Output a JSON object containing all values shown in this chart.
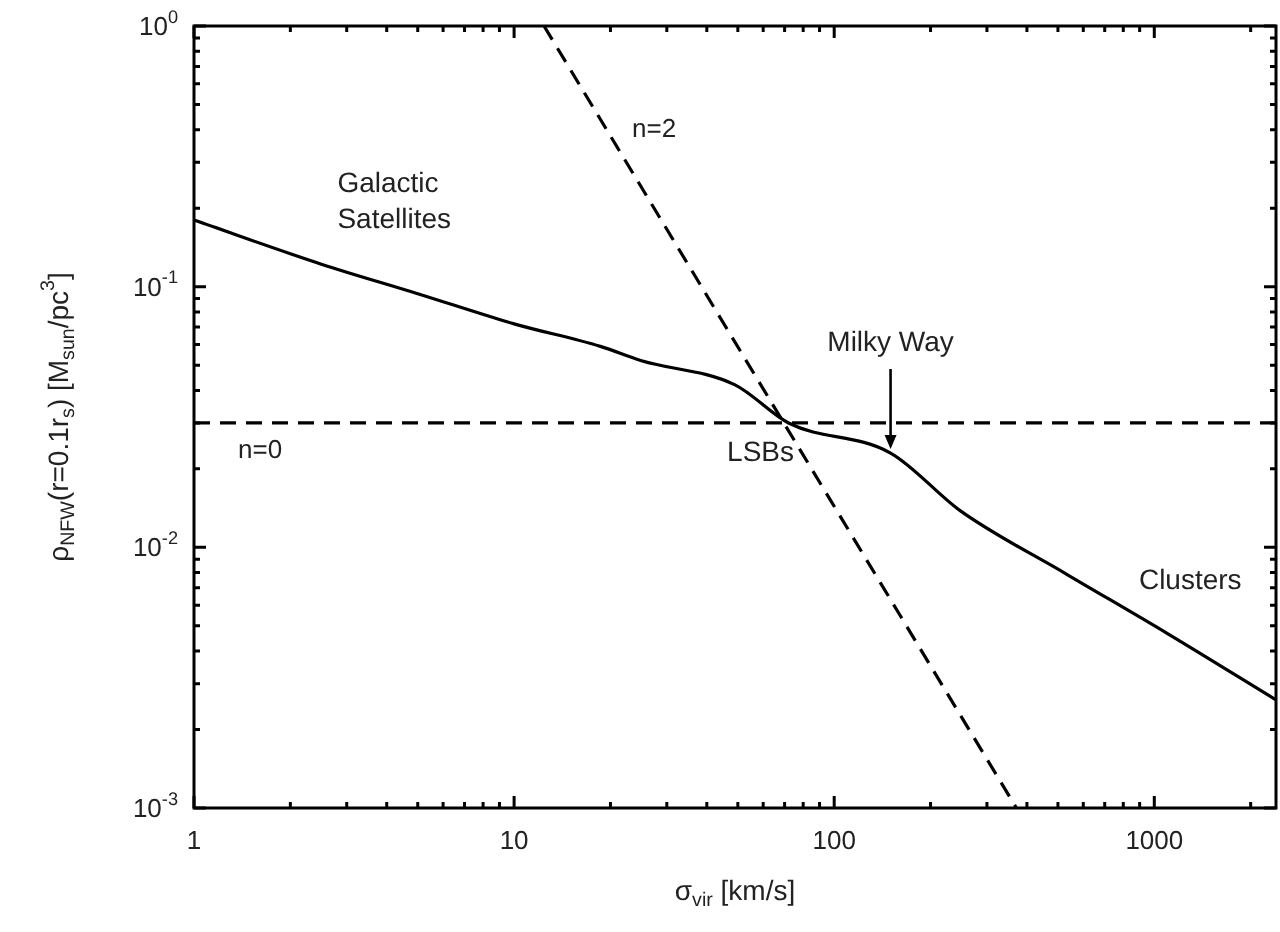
{
  "chart_data": {
    "type": "line",
    "xlabel": "σ$_{vir}$ [km/s]",
    "ylabel": "ρ$_{NFW}$(r=0.1r$_{s}$) [M$_{sun}$/pc$^{3}$]",
    "log": "xy",
    "xlim": [
      1,
      2400
    ],
    "ylim": [
      0.001,
      1
    ],
    "xticks": [
      1,
      {
        "value": 2,
        "label": null
      },
      {
        "value": 3,
        "label": null
      },
      {
        "value": 4,
        "label": null
      },
      {
        "value": 5,
        "label": null
      },
      {
        "value": 6,
        "label": null
      },
      {
        "value": 7,
        "label": null
      },
      {
        "value": 8,
        "label": null
      },
      {
        "value": 9,
        "label": null
      },
      10,
      {
        "value": 20,
        "label": null
      },
      {
        "value": 30,
        "label": null
      },
      {
        "value": 40,
        "label": null
      },
      {
        "value": 50,
        "label": null
      },
      {
        "value": 60,
        "label": null
      },
      {
        "value": 70,
        "label": null
      },
      {
        "value": 80,
        "label": null
      },
      {
        "value": 90,
        "label": null
      },
      100,
      {
        "value": 200,
        "label": null
      },
      {
        "value": 300,
        "label": null
      },
      {
        "value": 400,
        "label": null
      },
      {
        "value": 500,
        "label": null
      },
      {
        "value": 600,
        "label": null
      },
      {
        "value": 700,
        "label": null
      },
      {
        "value": 800,
        "label": null
      },
      {
        "value": 900,
        "label": null
      },
      1000,
      {
        "value": 2000,
        "label": null
      }
    ],
    "yticks": [
      {
        "value": 0.001,
        "label": "10$^{-3}$"
      },
      {
        "value": 0.002,
        "label": null
      },
      {
        "value": 0.003,
        "label": null
      },
      {
        "value": 0.004,
        "label": null
      },
      {
        "value": 0.005,
        "label": null
      },
      {
        "value": 0.006,
        "label": null
      },
      {
        "value": 0.007,
        "label": null
      },
      {
        "value": 0.008,
        "label": null
      },
      {
        "value": 0.009,
        "label": null
      },
      {
        "value": 0.01,
        "label": "10$^{-2}$"
      },
      {
        "value": 0.02,
        "label": null
      },
      {
        "value": 0.03,
        "label": null
      },
      {
        "value": 0.04,
        "label": null
      },
      {
        "value": 0.05,
        "label": null
      },
      {
        "value": 0.06,
        "label": null
      },
      {
        "value": 0.07,
        "label": null
      },
      {
        "value": 0.08,
        "label": null
      },
      {
        "value": 0.09,
        "label": null
      },
      {
        "value": 0.1,
        "label": "10$^{-1}$"
      },
      {
        "value": 0.2,
        "label": null
      },
      {
        "value": 0.3,
        "label": null
      },
      {
        "value": 0.4,
        "label": null
      },
      {
        "value": 0.5,
        "label": null
      },
      {
        "value": 0.6,
        "label": null
      },
      {
        "value": 0.7,
        "label": null
      },
      {
        "value": 0.8,
        "label": null
      },
      {
        "value": 0.9,
        "label": null
      },
      {
        "value": 1,
        "label": "10$^{0}$"
      }
    ],
    "legend": false,
    "marker": "none",
    "series": [
      {
        "color": "#000000",
        "line_style": "solid",
        "x": [
          1,
          2.5,
          5,
          10,
          18.6,
          25,
          49,
          72,
          150,
          248,
          531,
          1090,
          2400
        ],
        "values": [
          0.18,
          0.122,
          0.094,
          0.072,
          0.059,
          0.052,
          0.042,
          0.03,
          0.023,
          0.0138,
          0.0079,
          0.0047,
          0.0026
        ]
      },
      {
        "name": "n=2",
        "color": "#000000",
        "line_style": "dashed",
        "x": [
          12.4,
          371
        ],
        "values": [
          1,
          0.001
        ]
      }
    ],
    "ref_lines": [
      {
        "axis": "y",
        "value": 0.03,
        "label": "n=0",
        "color": "#000000",
        "line_style": "dashed"
      }
    ],
    "annotations": [
      {
        "text": "Galactic\nSatellites",
        "x": 2.5,
        "y": 0.122
      },
      {
        "text": "LSBs",
        "x": 72,
        "y": 0.03
      },
      {
        "text": "Milky Way",
        "x": 150,
        "y": 0.023
      },
      {
        "text": "Clusters",
        "x": 1090,
        "y": 0.0047
      }
    ]
  }
}
